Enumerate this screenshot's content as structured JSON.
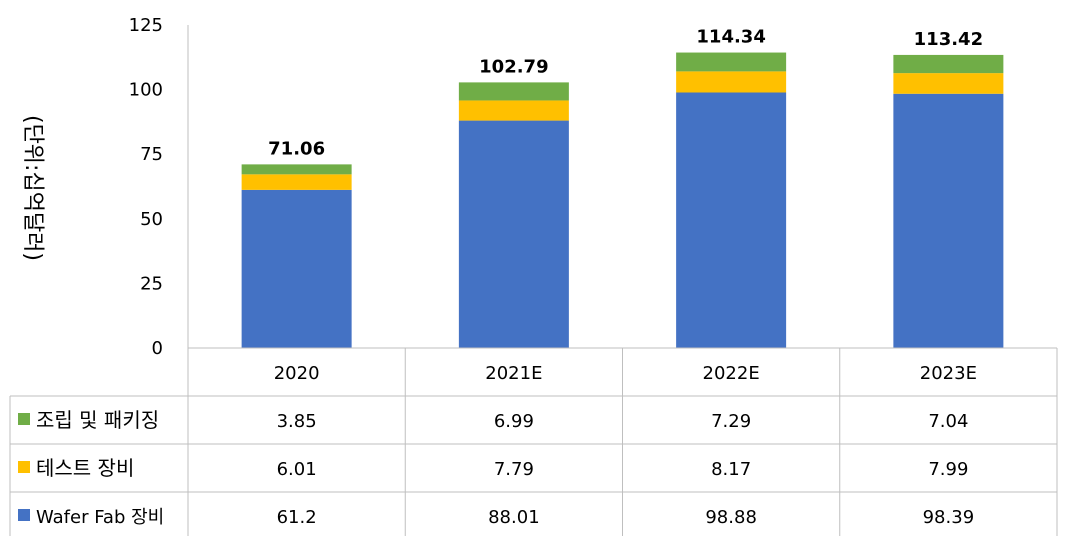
{
  "chart_data": {
    "type": "bar",
    "stacked": true,
    "categories": [
      "2020",
      "2021E",
      "2022E",
      "2023E"
    ],
    "series": [
      {
        "name": "Wafer Fab 장비",
        "color": "#4472C4",
        "values": [
          61.2,
          88.01,
          98.88,
          98.39
        ]
      },
      {
        "name": "테스트 장비",
        "color": "#FFC000",
        "values": [
          6.01,
          7.79,
          8.17,
          7.99
        ]
      },
      {
        "name": "조립 및 패키징",
        "color": "#70AD47",
        "values": [
          3.85,
          6.99,
          7.29,
          7.04
        ]
      }
    ],
    "totals": [
      "71.06",
      "102.79",
      "114.34",
      "113.42"
    ],
    "table_rows": [
      {
        "series_index": 2,
        "cells": [
          "3.85",
          "6.99",
          "7.29",
          "7.04"
        ]
      },
      {
        "series_index": 1,
        "cells": [
          "6.01",
          "7.79",
          "8.17",
          "7.99"
        ]
      },
      {
        "series_index": 0,
        "cells": [
          "61.2",
          "88.01",
          "98.88",
          "98.39"
        ]
      }
    ],
    "ylabel": "(단위:십억달러)",
    "ylim": [
      0,
      125
    ],
    "yticks": [
      0,
      25,
      50,
      75,
      100,
      125
    ],
    "grid": false,
    "legend": "data-table"
  }
}
